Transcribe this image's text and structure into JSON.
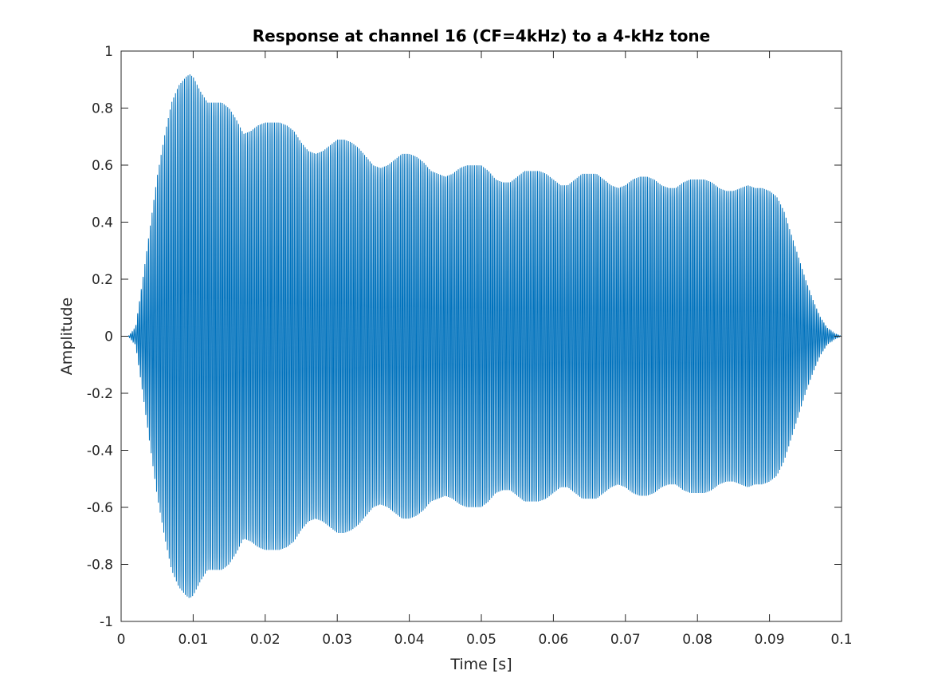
{
  "chart_data": {
    "type": "line",
    "title": "Response at channel 16 (CF=4kHz) to a 4-kHz tone",
    "xlabel": "Time [s]",
    "ylabel": "Amplitude",
    "xlim": [
      0,
      0.1
    ],
    "ylim": [
      -1,
      1
    ],
    "xticks": [
      0,
      0.01,
      0.02,
      0.03,
      0.04,
      0.05,
      0.06,
      0.07,
      0.08,
      0.09,
      0.1
    ],
    "xtick_labels": [
      "0",
      "0.01",
      "0.02",
      "0.03",
      "0.04",
      "0.05",
      "0.06",
      "0.07",
      "0.08",
      "0.09",
      "0.1"
    ],
    "yticks": [
      -1,
      -0.8,
      -0.6,
      -0.4,
      -0.2,
      0,
      0.2,
      0.4,
      0.6,
      0.8,
      1
    ],
    "ytick_labels": [
      "-1",
      "-0.8",
      "-0.6",
      "-0.4",
      "-0.2",
      "0",
      "0.2",
      "0.4",
      "0.6",
      "0.8",
      "1"
    ],
    "grid": false,
    "box": true,
    "line_color": "#0072BD",
    "signal": {
      "description": "4 kHz tone response",
      "frequency_hz": 4000,
      "envelope": {
        "t": [
          0,
          0.001,
          0.002,
          0.003,
          0.004,
          0.005,
          0.006,
          0.007,
          0.008,
          0.009,
          0.0095,
          0.01,
          0.011,
          0.012,
          0.013,
          0.014,
          0.015,
          0.016,
          0.017,
          0.018,
          0.019,
          0.02,
          0.021,
          0.022,
          0.023,
          0.024,
          0.025,
          0.026,
          0.027,
          0.028,
          0.029,
          0.03,
          0.031,
          0.032,
          0.033,
          0.034,
          0.035,
          0.036,
          0.037,
          0.038,
          0.039,
          0.04,
          0.041,
          0.042,
          0.043,
          0.044,
          0.045,
          0.046,
          0.047,
          0.048,
          0.049,
          0.05,
          0.051,
          0.052,
          0.053,
          0.054,
          0.055,
          0.056,
          0.057,
          0.058,
          0.059,
          0.06,
          0.061,
          0.062,
          0.063,
          0.064,
          0.065,
          0.066,
          0.067,
          0.068,
          0.069,
          0.07,
          0.071,
          0.072,
          0.073,
          0.074,
          0.075,
          0.076,
          0.077,
          0.078,
          0.079,
          0.08,
          0.081,
          0.082,
          0.083,
          0.084,
          0.085,
          0.086,
          0.087,
          0.088,
          0.089,
          0.09,
          0.091,
          0.092,
          0.093,
          0.094,
          0.095,
          0.096,
          0.097,
          0.098,
          0.099,
          0.1
        ],
        "amp": [
          0.0,
          0.0,
          0.03,
          0.2,
          0.38,
          0.56,
          0.7,
          0.82,
          0.88,
          0.91,
          0.92,
          0.91,
          0.86,
          0.82,
          0.82,
          0.82,
          0.8,
          0.76,
          0.71,
          0.72,
          0.74,
          0.75,
          0.75,
          0.75,
          0.74,
          0.72,
          0.68,
          0.65,
          0.64,
          0.65,
          0.67,
          0.69,
          0.69,
          0.68,
          0.66,
          0.63,
          0.6,
          0.59,
          0.6,
          0.62,
          0.64,
          0.64,
          0.63,
          0.61,
          0.58,
          0.57,
          0.56,
          0.57,
          0.59,
          0.6,
          0.6,
          0.6,
          0.58,
          0.55,
          0.54,
          0.54,
          0.56,
          0.58,
          0.58,
          0.58,
          0.57,
          0.55,
          0.53,
          0.53,
          0.55,
          0.57,
          0.57,
          0.57,
          0.55,
          0.53,
          0.52,
          0.53,
          0.55,
          0.56,
          0.56,
          0.55,
          0.53,
          0.52,
          0.52,
          0.54,
          0.55,
          0.55,
          0.55,
          0.54,
          0.52,
          0.51,
          0.51,
          0.52,
          0.53,
          0.52,
          0.52,
          0.51,
          0.49,
          0.44,
          0.36,
          0.28,
          0.2,
          0.13,
          0.07,
          0.03,
          0.01,
          0.0
        ]
      }
    }
  }
}
